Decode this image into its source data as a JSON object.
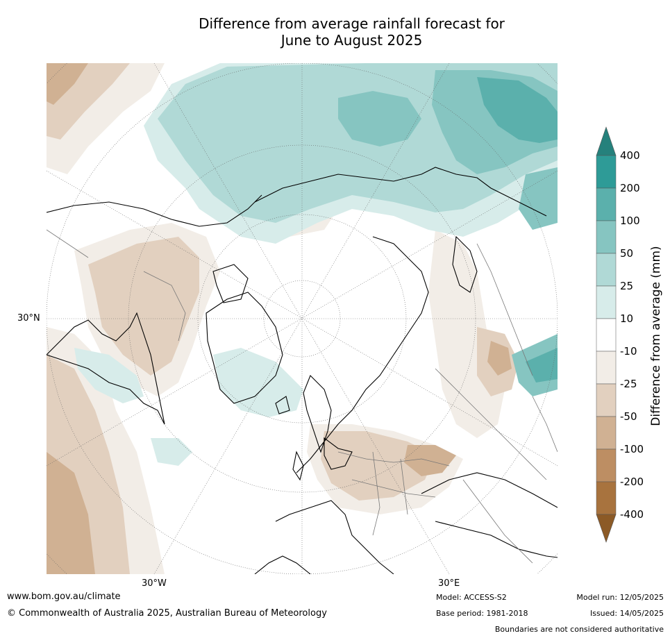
{
  "title": {
    "line1": "Difference from average rainfall forecast for",
    "line2": "June to August 2025"
  },
  "map": {
    "projection": "north-polar-stereographic",
    "labels": {
      "lat30": "30°N",
      "lon30w": "30°W",
      "lon30e": "30°E"
    }
  },
  "colorbar": {
    "title": "Difference from average (mm)",
    "ticks": [
      "400",
      "200",
      "100",
      "50",
      "25",
      "10",
      "-10",
      "-25",
      "-50",
      "-100",
      "-200",
      "-400"
    ],
    "colors": {
      "gt400": "#25817c",
      "200_400": "#2e9b97",
      "100_200": "#5bb0ac",
      "50_100": "#86c5c1",
      "25_50": "#b0d9d6",
      "10_25": "#d7ecea",
      "neutral": "#ffffff",
      "m10_m25": "#f2ede7",
      "m25_m50": "#e2d0bf",
      "m50_m100": "#d0b193",
      "m100_m200": "#bd8e63",
      "m200_m400": "#a8733e",
      "lt400": "#8c5a26"
    }
  },
  "footer": {
    "website": "www.bom.gov.au/climate",
    "copyright": "© Commonwealth of Australia 2025, Australian Bureau of Meteorology",
    "model": "Model: ACCESS-S2",
    "base_period": "Base period: 1981-2018",
    "model_run": "Model run: 12/05/2025",
    "issued": "Issued: 14/05/2025",
    "disclaimer": "Boundaries are not considered authoritative"
  }
}
